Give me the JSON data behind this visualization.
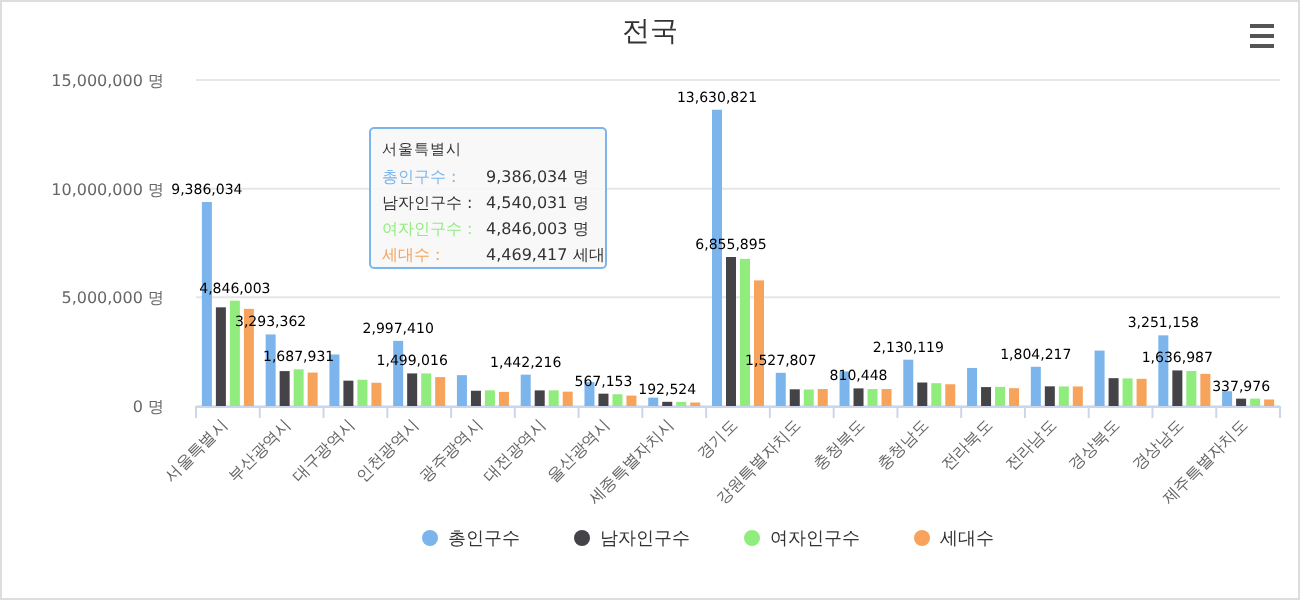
{
  "chart_data": {
    "type": "bar",
    "title": "전국",
    "categories": [
      "서울특별시",
      "부산광역시",
      "대구광역시",
      "인천광역시",
      "광주광역시",
      "대전광역시",
      "울산광역시",
      "세종특별자치시",
      "경기도",
      "강원특별자치도",
      "충청북도",
      "충청남도",
      "전라북도",
      "전라남도",
      "경상북도",
      "경상남도",
      "제주특별자치도"
    ],
    "series": [
      {
        "name": "총인구수",
        "color": "#7cb5ec",
        "values": [
          9386034,
          3293362,
          2370000,
          2997410,
          1420000,
          1442216,
          1100000,
          386000,
          13630821,
          1527807,
          1590000,
          2130119,
          1750000,
          1804217,
          2550000,
          3251158,
          680000
        ],
        "value_labels": [
          "9,386,034",
          "3,293,362",
          null,
          "2,997,410",
          null,
          "1,442,216",
          null,
          null,
          "13,630,821",
          "1,527,807",
          null,
          "2,130,119",
          null,
          "1,804,217",
          null,
          "3,251,158",
          null
        ]
      },
      {
        "name": "남자인구수",
        "color": "#434348",
        "values": [
          4540031,
          1605431,
          1166000,
          1499016,
          702000,
          718000,
          567153,
          192524,
          6855895,
          768000,
          810448,
          1080000,
          870000,
          905000,
          1280000,
          1636987,
          337976
        ],
        "value_labels": [
          null,
          null,
          null,
          "1,499,016",
          null,
          null,
          "567,153",
          "192,524",
          "6,855,895",
          null,
          "810,448",
          null,
          null,
          null,
          null,
          "1,636,987",
          "337,976"
        ]
      },
      {
        "name": "여자인구수",
        "color": "#90ed7d",
        "values": [
          4846003,
          1687931,
          1210000,
          1500000,
          720000,
          720000,
          540000,
          190000,
          6770000,
          760000,
          780000,
          1050000,
          880000,
          900000,
          1270000,
          1610000,
          340000
        ],
        "value_labels": [
          "4,846,003",
          "1,687,931",
          null,
          null,
          null,
          null,
          null,
          null,
          null,
          null,
          null,
          null,
          null,
          null,
          null,
          null,
          null
        ]
      },
      {
        "name": "세대수",
        "color": "#f7a35c",
        "values": [
          4469417,
          1540000,
          1070000,
          1330000,
          650000,
          660000,
          480000,
          160000,
          5780000,
          780000,
          780000,
          1000000,
          820000,
          900000,
          1250000,
          1480000,
          300000
        ]
      }
    ],
    "ylim": [
      0,
      15000000
    ],
    "yticks": [
      {
        "value": 0,
        "label": "0 명"
      },
      {
        "value": 5000000,
        "label": "5,000,000 명"
      },
      {
        "value": 10000000,
        "label": "10,000,000 명"
      },
      {
        "value": 15000000,
        "label": "15,000,000 명"
      }
    ],
    "grid": "y",
    "legend": "bottom",
    "annotations": [
      "서울특별시",
      "총인구수 :",
      "9,386,034 명",
      "남자인구수 :",
      "4,540,031 명",
      "여자인구수 :",
      "4,846,003 명",
      "세대수 :",
      "4,469,417 세대"
    ]
  }
}
